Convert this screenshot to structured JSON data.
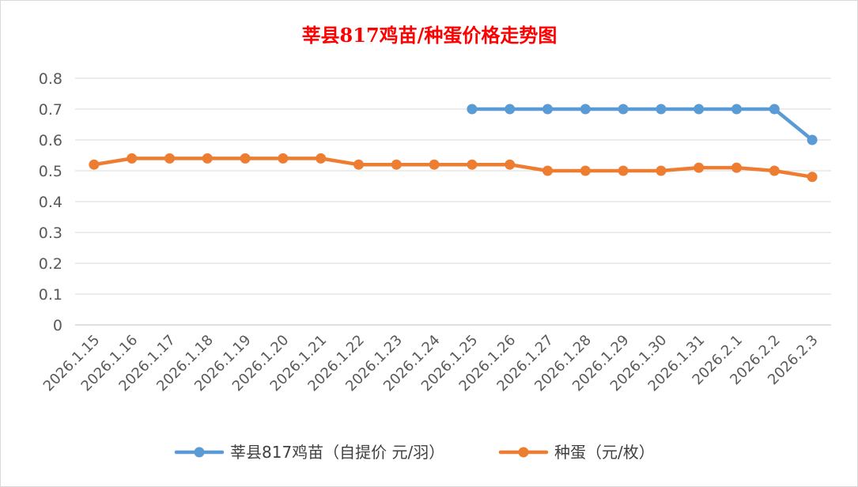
{
  "chart_data": {
    "type": "line",
    "title": "莘县817鸡苗/种蛋价格走势图",
    "xlabel": "",
    "ylabel": "",
    "ylim": [
      0,
      0.8
    ],
    "yticks": [
      "0",
      "0.1",
      "0.2",
      "0.3",
      "0.4",
      "0.5",
      "0.6",
      "0.7",
      "0.8"
    ],
    "grid": true,
    "legend_position": "bottom",
    "categories": [
      "2026.1.15",
      "2026.1.16",
      "2026.1.17",
      "2026.1.18",
      "2026.1.19",
      "2026.1.20",
      "2026.1.21",
      "2026.1.22",
      "2026.1.23",
      "2026.1.24",
      "2026.1.25",
      "2026.1.26",
      "2026.1.27",
      "2026.1.28",
      "2026.1.29",
      "2026.1.30",
      "2026.1.31",
      "2026.2.1",
      "2026.2.2",
      "2026.2.3"
    ],
    "series": [
      {
        "name": "莘县817鸡苗（自提价 元/羽）",
        "color": "#5b9bd5",
        "values": [
          null,
          null,
          null,
          null,
          null,
          null,
          null,
          null,
          null,
          null,
          0.7,
          0.7,
          0.7,
          0.7,
          0.7,
          0.7,
          0.7,
          0.7,
          0.7,
          0.6
        ]
      },
      {
        "name": "种蛋（元/枚）",
        "color": "#ed7d31",
        "values": [
          0.52,
          0.54,
          0.54,
          0.54,
          0.54,
          0.54,
          0.54,
          0.52,
          0.52,
          0.52,
          0.52,
          0.52,
          0.5,
          0.5,
          0.5,
          0.5,
          0.51,
          0.51,
          0.5,
          0.48
        ]
      }
    ]
  }
}
